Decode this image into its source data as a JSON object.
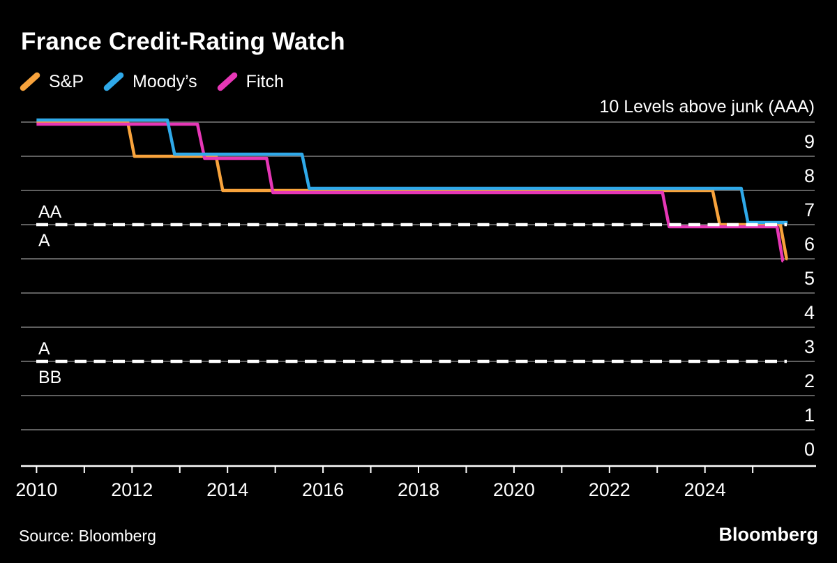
{
  "header": {
    "title": "France Credit-Rating Watch",
    "axis_note": "10 Levels above junk (AAA)"
  },
  "legend": [
    {
      "label": "S&P",
      "color": "#F8A33C"
    },
    {
      "label": "Moody’s",
      "color": "#2FA9E9"
    },
    {
      "label": "Fitch",
      "color": "#E637B6"
    }
  ],
  "footer": {
    "source": "Source: Bloomberg",
    "logo": "Bloomberg"
  },
  "chart_data": {
    "type": "line",
    "subtype": "step",
    "title": "France Credit-Rating Watch",
    "unit_note": "10 Levels above junk (AAA)",
    "grid": true,
    "legend_position": "top-left",
    "x_range": [
      2010,
      2026.4
    ],
    "y_range": [
      0,
      10
    ],
    "x_ticks": [
      2010,
      2011,
      2012,
      2013,
      2014,
      2015,
      2016,
      2017,
      2018,
      2019,
      2020,
      2021,
      2022,
      2023,
      2024,
      2025
    ],
    "x_tick_labels": [
      2010,
      2012,
      2014,
      2016,
      2018,
      2020,
      2022,
      2024
    ],
    "y_ticks": [
      {
        "label": "9",
        "level": 9
      },
      {
        "label": "8",
        "level": 8
      },
      {
        "label": "7",
        "level": 7
      },
      {
        "label": "6",
        "level": 6
      },
      {
        "label": "5",
        "level": 5
      },
      {
        "label": "4",
        "level": 4
      },
      {
        "label": "3",
        "level": 3
      },
      {
        "label": "2",
        "level": 2
      },
      {
        "label": "1",
        "level": 1
      },
      {
        "label": "0",
        "level": 0
      }
    ],
    "gridline_levels": [
      10,
      9,
      8,
      7,
      6,
      5,
      4,
      3,
      2,
      1
    ],
    "threshold_lines": [
      {
        "level": 7,
        "label_above": "AA",
        "label_below": "A"
      },
      {
        "level": 3,
        "label_above": "A",
        "label_below": "BB"
      }
    ],
    "series": [
      {
        "id": "sp",
        "name": "S&P",
        "color": "#F8A33C",
        "points": [
          [
            2010.0,
            10
          ],
          [
            2011.91,
            10
          ],
          [
            2012.05,
            9
          ],
          [
            2013.76,
            9
          ],
          [
            2013.9,
            8
          ],
          [
            2024.16,
            8
          ],
          [
            2024.31,
            7
          ],
          [
            2025.58,
            7
          ],
          [
            2025.71,
            6
          ],
          [
            2025.73,
            6
          ]
        ]
      },
      {
        "id": "moodys",
        "name": "Moody’s",
        "color": "#2FA9E9",
        "points": [
          [
            2010.0,
            10
          ],
          [
            2012.74,
            10
          ],
          [
            2012.89,
            9
          ],
          [
            2015.56,
            9
          ],
          [
            2015.71,
            8
          ],
          [
            2024.76,
            8
          ],
          [
            2024.9,
            7
          ],
          [
            2025.73,
            7
          ]
        ]
      },
      {
        "id": "fitch",
        "name": "Fitch",
        "color": "#E637B6",
        "points": [
          [
            2010.0,
            10
          ],
          [
            2013.37,
            10
          ],
          [
            2013.52,
            9
          ],
          [
            2014.82,
            9
          ],
          [
            2014.95,
            8
          ],
          [
            2023.11,
            8
          ],
          [
            2023.25,
            7
          ],
          [
            2025.51,
            7
          ],
          [
            2025.63,
            6
          ],
          [
            2025.64,
            6
          ]
        ]
      }
    ],
    "style": {
      "background": "#000000",
      "grid_color": "#5F5F5F",
      "axis_color": "#FFFFFF",
      "threshold_color": "#FFFFFF"
    }
  }
}
